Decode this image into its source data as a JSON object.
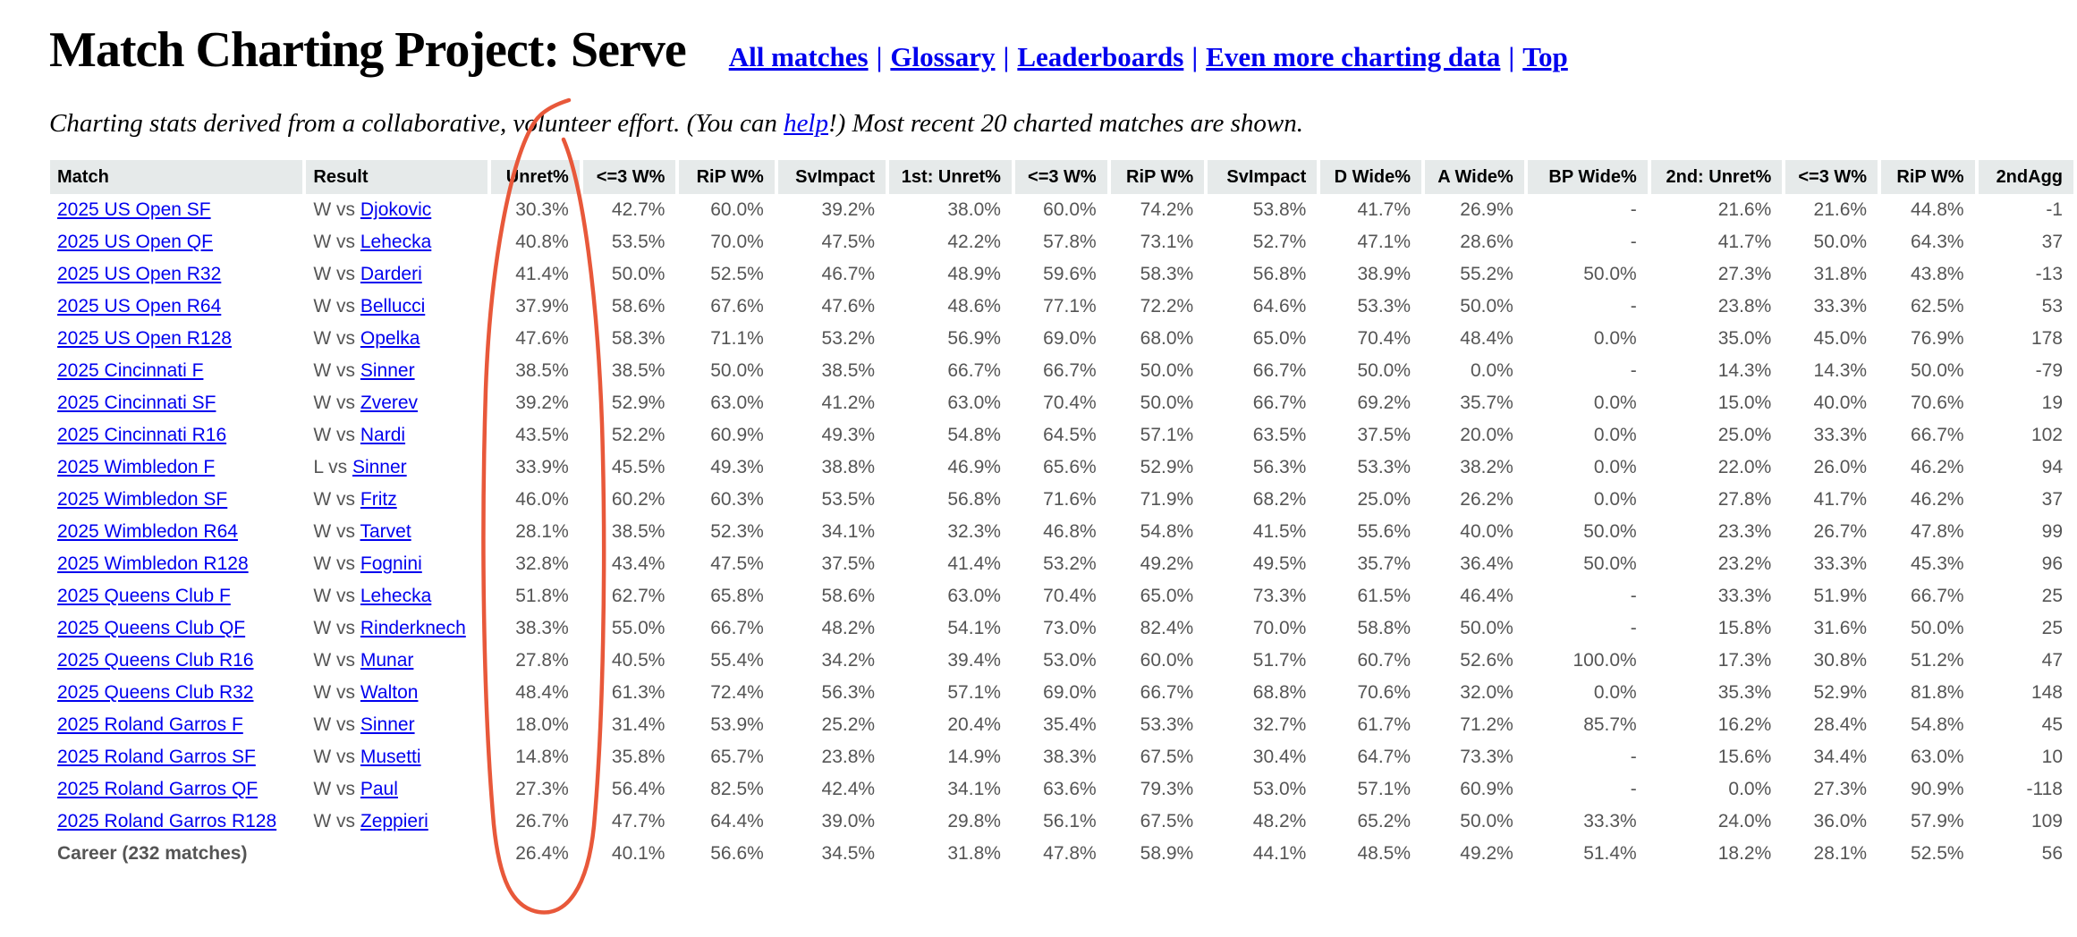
{
  "page": {
    "title": "Match Charting Project: Serve",
    "nav_separator": "|",
    "nav": [
      {
        "label": "All matches"
      },
      {
        "label": "Glossary"
      },
      {
        "label": "Leaderboards"
      },
      {
        "label": "Even more charting data"
      },
      {
        "label": "Top"
      }
    ],
    "subtitle_pre": "Charting stats derived from a collaborative, volunteer effort. (You can ",
    "subtitle_link": "help",
    "subtitle_post": "!) Most recent 20 charted matches are shown."
  },
  "table": {
    "columns": [
      "Match",
      "Result",
      "Unret%",
      "<=3 W%",
      "RiP W%",
      "SvImpact",
      "1st: Unret%",
      "<=3 W%",
      "RiP W%",
      "SvImpact",
      "D Wide%",
      "A Wide%",
      "BP Wide%",
      "2nd: Unret%",
      "<=3 W%",
      "RiP W%",
      "2ndAgg"
    ],
    "rows": [
      {
        "match": "2025 US Open SF",
        "result": "W vs",
        "opponent": "Djokovic",
        "values": [
          "30.3%",
          "42.7%",
          "60.0%",
          "39.2%",
          "38.0%",
          "60.0%",
          "74.2%",
          "53.8%",
          "41.7%",
          "26.9%",
          "-",
          "21.6%",
          "21.6%",
          "44.8%",
          "-1"
        ]
      },
      {
        "match": "2025 US Open QF",
        "result": "W vs",
        "opponent": "Lehecka",
        "values": [
          "40.8%",
          "53.5%",
          "70.0%",
          "47.5%",
          "42.2%",
          "57.8%",
          "73.1%",
          "52.7%",
          "47.1%",
          "28.6%",
          "-",
          "41.7%",
          "50.0%",
          "64.3%",
          "37"
        ]
      },
      {
        "match": "2025 US Open R32",
        "result": "W vs",
        "opponent": "Darderi",
        "values": [
          "41.4%",
          "50.0%",
          "52.5%",
          "46.7%",
          "48.9%",
          "59.6%",
          "58.3%",
          "56.8%",
          "38.9%",
          "55.2%",
          "50.0%",
          "27.3%",
          "31.8%",
          "43.8%",
          "-13"
        ]
      },
      {
        "match": "2025 US Open R64",
        "result": "W vs",
        "opponent": "Bellucci",
        "values": [
          "37.9%",
          "58.6%",
          "67.6%",
          "47.6%",
          "48.6%",
          "77.1%",
          "72.2%",
          "64.6%",
          "53.3%",
          "50.0%",
          "-",
          "23.8%",
          "33.3%",
          "62.5%",
          "53"
        ]
      },
      {
        "match": "2025 US Open R128",
        "result": "W vs",
        "opponent": "Opelka",
        "values": [
          "47.6%",
          "58.3%",
          "71.1%",
          "53.2%",
          "56.9%",
          "69.0%",
          "68.0%",
          "65.0%",
          "70.4%",
          "48.4%",
          "0.0%",
          "35.0%",
          "45.0%",
          "76.9%",
          "178"
        ]
      },
      {
        "match": "2025 Cincinnati F",
        "result": "W vs",
        "opponent": "Sinner",
        "values": [
          "38.5%",
          "38.5%",
          "50.0%",
          "38.5%",
          "66.7%",
          "66.7%",
          "50.0%",
          "66.7%",
          "50.0%",
          "0.0%",
          "-",
          "14.3%",
          "14.3%",
          "50.0%",
          "-79"
        ]
      },
      {
        "match": "2025 Cincinnati SF",
        "result": "W vs",
        "opponent": "Zverev",
        "values": [
          "39.2%",
          "52.9%",
          "63.0%",
          "41.2%",
          "63.0%",
          "70.4%",
          "50.0%",
          "66.7%",
          "69.2%",
          "35.7%",
          "0.0%",
          "15.0%",
          "40.0%",
          "70.6%",
          "19"
        ]
      },
      {
        "match": "2025 Cincinnati R16",
        "result": "W vs",
        "opponent": "Nardi",
        "values": [
          "43.5%",
          "52.2%",
          "60.9%",
          "49.3%",
          "54.8%",
          "64.5%",
          "57.1%",
          "63.5%",
          "37.5%",
          "20.0%",
          "0.0%",
          "25.0%",
          "33.3%",
          "66.7%",
          "102"
        ]
      },
      {
        "match": "2025 Wimbledon F",
        "result": "L vs",
        "opponent": "Sinner",
        "values": [
          "33.9%",
          "45.5%",
          "49.3%",
          "38.8%",
          "46.9%",
          "65.6%",
          "52.9%",
          "56.3%",
          "53.3%",
          "38.2%",
          "0.0%",
          "22.0%",
          "26.0%",
          "46.2%",
          "94"
        ]
      },
      {
        "match": "2025 Wimbledon SF",
        "result": "W vs",
        "opponent": "Fritz",
        "values": [
          "46.0%",
          "60.2%",
          "60.3%",
          "53.5%",
          "56.8%",
          "71.6%",
          "71.9%",
          "68.2%",
          "25.0%",
          "26.2%",
          "0.0%",
          "27.8%",
          "41.7%",
          "46.2%",
          "37"
        ]
      },
      {
        "match": "2025 Wimbledon R64",
        "result": "W vs",
        "opponent": "Tarvet",
        "values": [
          "28.1%",
          "38.5%",
          "52.3%",
          "34.1%",
          "32.3%",
          "46.8%",
          "54.8%",
          "41.5%",
          "55.6%",
          "40.0%",
          "50.0%",
          "23.3%",
          "26.7%",
          "47.8%",
          "99"
        ]
      },
      {
        "match": "2025 Wimbledon R128",
        "result": "W vs",
        "opponent": "Fognini",
        "values": [
          "32.8%",
          "43.4%",
          "47.5%",
          "37.5%",
          "41.4%",
          "53.2%",
          "49.2%",
          "49.5%",
          "35.7%",
          "36.4%",
          "50.0%",
          "23.2%",
          "33.3%",
          "45.3%",
          "96"
        ]
      },
      {
        "match": "2025 Queens Club F",
        "result": "W vs",
        "opponent": "Lehecka",
        "values": [
          "51.8%",
          "62.7%",
          "65.8%",
          "58.6%",
          "63.0%",
          "70.4%",
          "65.0%",
          "73.3%",
          "61.5%",
          "46.4%",
          "-",
          "33.3%",
          "51.9%",
          "66.7%",
          "25"
        ]
      },
      {
        "match": "2025 Queens Club QF",
        "result": "W vs",
        "opponent": "Rinderknech",
        "values": [
          "38.3%",
          "55.0%",
          "66.7%",
          "48.2%",
          "54.1%",
          "73.0%",
          "82.4%",
          "70.0%",
          "58.8%",
          "50.0%",
          "-",
          "15.8%",
          "31.6%",
          "50.0%",
          "25"
        ]
      },
      {
        "match": "2025 Queens Club R16",
        "result": "W vs",
        "opponent": "Munar",
        "values": [
          "27.8%",
          "40.5%",
          "55.4%",
          "34.2%",
          "39.4%",
          "53.0%",
          "60.0%",
          "51.7%",
          "60.7%",
          "52.6%",
          "100.0%",
          "17.3%",
          "30.8%",
          "51.2%",
          "47"
        ]
      },
      {
        "match": "2025 Queens Club R32",
        "result": "W vs",
        "opponent": "Walton",
        "values": [
          "48.4%",
          "61.3%",
          "72.4%",
          "56.3%",
          "57.1%",
          "69.0%",
          "66.7%",
          "68.8%",
          "70.6%",
          "32.0%",
          "0.0%",
          "35.3%",
          "52.9%",
          "81.8%",
          "148"
        ]
      },
      {
        "match": "2025 Roland Garros F",
        "result": "W vs",
        "opponent": "Sinner",
        "values": [
          "18.0%",
          "31.4%",
          "53.9%",
          "25.2%",
          "20.4%",
          "35.4%",
          "53.3%",
          "32.7%",
          "61.7%",
          "71.2%",
          "85.7%",
          "16.2%",
          "28.4%",
          "54.8%",
          "45"
        ]
      },
      {
        "match": "2025 Roland Garros SF",
        "result": "W vs",
        "opponent": "Musetti",
        "values": [
          "14.8%",
          "35.8%",
          "65.7%",
          "23.8%",
          "14.9%",
          "38.3%",
          "67.5%",
          "30.4%",
          "64.7%",
          "73.3%",
          "-",
          "15.6%",
          "34.4%",
          "63.0%",
          "10"
        ]
      },
      {
        "match": "2025 Roland Garros QF",
        "result": "W vs",
        "opponent": "Paul",
        "values": [
          "27.3%",
          "56.4%",
          "82.5%",
          "42.4%",
          "34.1%",
          "63.6%",
          "79.3%",
          "53.0%",
          "57.1%",
          "60.9%",
          "-",
          "0.0%",
          "27.3%",
          "90.9%",
          "-118"
        ]
      },
      {
        "match": "2025 Roland Garros R128",
        "result": "W vs",
        "opponent": "Zeppieri",
        "values": [
          "26.7%",
          "47.7%",
          "64.4%",
          "39.0%",
          "29.8%",
          "56.1%",
          "67.5%",
          "48.2%",
          "65.2%",
          "50.0%",
          "33.3%",
          "24.0%",
          "36.0%",
          "57.9%",
          "109"
        ]
      }
    ],
    "career": {
      "label": "Career (232 matches)",
      "values": [
        "26.4%",
        "40.1%",
        "56.6%",
        "34.5%",
        "31.8%",
        "47.8%",
        "58.9%",
        "44.1%",
        "48.5%",
        "49.2%",
        "51.4%",
        "18.2%",
        "28.1%",
        "52.5%",
        "56"
      ]
    }
  },
  "annotation": {
    "description": "hand-drawn red loop circling the Unret% column",
    "color": "#E8583A"
  }
}
